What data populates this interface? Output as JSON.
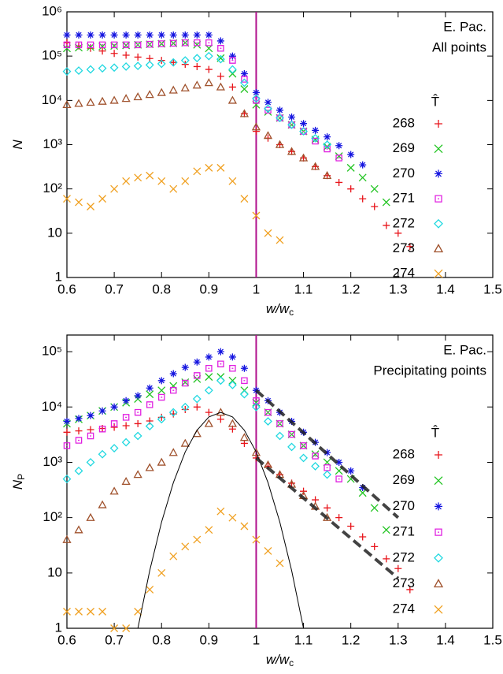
{
  "chart_data": [
    {
      "type": "scatter",
      "annotation": [
        "E. Pac.",
        "All points"
      ],
      "xlabel": {
        "main": "w/w",
        "sub": "c"
      },
      "ylabel": {
        "main": "N",
        "sub": ""
      },
      "legend_title": "T̂",
      "legend": "right",
      "log_y": true,
      "xlim": [
        0.6,
        1.5
      ],
      "ylim": [
        1,
        1000000
      ],
      "xticks": [
        0.6,
        0.7,
        0.8,
        0.9,
        1,
        1.1,
        1.2,
        1.3,
        1.4,
        1.5
      ],
      "yticks": [
        1,
        10,
        {
          "value": 100,
          "label": "10²"
        },
        {
          "value": 1000,
          "label": "10³"
        },
        {
          "value": 10000,
          "label": "10⁴"
        },
        {
          "value": 100000,
          "label": "10⁵"
        },
        {
          "value": 1000000,
          "label": "10⁶"
        }
      ],
      "vline": {
        "x": 1,
        "color": "#b0108c"
      },
      "x": [
        0.6,
        0.625,
        0.65,
        0.675,
        0.7,
        0.725,
        0.75,
        0.775,
        0.8,
        0.825,
        0.85,
        0.875,
        0.9,
        0.925,
        0.95,
        0.975,
        1.0,
        1.025,
        1.05,
        1.075,
        1.1,
        1.125,
        1.15,
        1.175,
        1.2,
        1.225,
        1.25,
        1.275,
        1.3,
        1.325
      ],
      "series": [
        {
          "name": "268",
          "color": "#e8151b",
          "marker": "plus",
          "values": [
            200000,
            170000,
            150000,
            130000,
            115000,
            105000,
            95000,
            88000,
            80000,
            72000,
            65000,
            58000,
            50000,
            35000,
            20000,
            5000,
            2000,
            1400,
            1000,
            700,
            500,
            320,
            200,
            140,
            100,
            60,
            40,
            15,
            10,
            5
          ]
        },
        {
          "name": "269",
          "color": "#22c422",
          "marker": "cross",
          "values": [
            150000,
            155000,
            160000,
            165000,
            170000,
            175000,
            180000,
            185000,
            190000,
            195000,
            200000,
            180000,
            150000,
            90000,
            40000,
            18000,
            8000,
            5500,
            4000,
            2800,
            2000,
            1300,
            900,
            550,
            300,
            180,
            100,
            50,
            null,
            null
          ]
        },
        {
          "name": "270",
          "color": "#1515e0",
          "marker": "star",
          "values": [
            300000,
            300000,
            300000,
            300000,
            300000,
            300000,
            300000,
            300000,
            300000,
            300000,
            300000,
            300000,
            300000,
            220000,
            100000,
            40000,
            15000,
            9000,
            6000,
            4200,
            3000,
            2100,
            1500,
            950,
            600,
            350,
            null,
            null,
            null,
            null
          ]
        },
        {
          "name": "271",
          "color": "#e020e0",
          "marker": "square",
          "values": [
            180000,
            180000,
            180000,
            180000,
            180000,
            180000,
            180000,
            185000,
            190000,
            195000,
            200000,
            200000,
            200000,
            150000,
            80000,
            30000,
            10000,
            6000,
            4000,
            2800,
            2000,
            1200,
            800,
            500,
            null,
            null,
            null,
            null,
            null,
            null
          ]
        },
        {
          "name": "272",
          "color": "#20d8e0",
          "marker": "diamond",
          "values": [
            45000,
            47000,
            50000,
            53000,
            55000,
            58000,
            60000,
            63000,
            67000,
            72000,
            80000,
            90000,
            100000,
            85000,
            50000,
            25000,
            11000,
            6500,
            4000,
            2800,
            2000,
            1400,
            1000,
            null,
            null,
            null,
            null,
            null,
            null,
            null
          ]
        },
        {
          "name": "273",
          "color": "#a0522d",
          "marker": "triangle",
          "values": [
            8000,
            8500,
            9000,
            9500,
            10000,
            11000,
            12000,
            13500,
            15000,
            17000,
            19000,
            22000,
            25000,
            20000,
            10000,
            5000,
            2500,
            1600,
            1000,
            700,
            500,
            320,
            200,
            null,
            null,
            null,
            null,
            null,
            null,
            null
          ]
        },
        {
          "name": "274",
          "color": "#f0a020",
          "marker": "cross",
          "values": [
            60,
            50,
            40,
            60,
            100,
            150,
            180,
            200,
            150,
            100,
            150,
            250,
            300,
            300,
            150,
            60,
            25,
            10,
            7,
            null,
            null,
            null,
            null,
            null,
            null,
            null,
            null,
            null,
            null,
            null
          ]
        }
      ]
    },
    {
      "type": "scatter",
      "annotation": [
        "E. Pac.",
        "Precipitating points"
      ],
      "xlabel": {
        "main": "w/w",
        "sub": "c"
      },
      "ylabel": {
        "main": "N",
        "sub": "P"
      },
      "legend_title": "T̂",
      "legend": "right",
      "log_y": true,
      "xlim": [
        0.6,
        1.5
      ],
      "ylim": [
        1,
        200000
      ],
      "xticks": [
        0.6,
        0.7,
        0.8,
        0.9,
        1,
        1.1,
        1.2,
        1.3,
        1.4,
        1.5
      ],
      "yticks": [
        1,
        10,
        {
          "value": 100,
          "label": "10²"
        },
        {
          "value": 1000,
          "label": "10³"
        },
        {
          "value": 10000,
          "label": "10⁴"
        },
        {
          "value": 100000,
          "label": "10⁵"
        }
      ],
      "vline": {
        "x": 1,
        "color": "#b0108c"
      },
      "x": [
        0.6,
        0.625,
        0.65,
        0.675,
        0.7,
        0.725,
        0.75,
        0.775,
        0.8,
        0.825,
        0.85,
        0.875,
        0.9,
        0.925,
        0.95,
        0.975,
        1.0,
        1.025,
        1.05,
        1.075,
        1.1,
        1.125,
        1.15,
        1.175,
        1.2,
        1.225,
        1.25,
        1.275,
        1.3,
        1.325
      ],
      "series": [
        {
          "name": "268",
          "color": "#e8151b",
          "marker": "plus",
          "values": [
            3500,
            3700,
            3900,
            4100,
            4300,
            4600,
            5000,
            5600,
            6500,
            7500,
            9000,
            10000,
            8000,
            6000,
            4000,
            2200,
            1200,
            850,
            600,
            420,
            300,
            210,
            150,
            100,
            70,
            45,
            30,
            18,
            12,
            5
          ]
        },
        {
          "name": "269",
          "color": "#22c422",
          "marker": "cross",
          "values": [
            5000,
            6000,
            7000,
            8500,
            10000,
            12000,
            14000,
            17000,
            20000,
            24000,
            28000,
            32000,
            35000,
            35000,
            30000,
            20000,
            12000,
            8000,
            5000,
            3200,
            2000,
            1400,
            1000,
            700,
            500,
            280,
            150,
            60,
            null,
            null
          ]
        },
        {
          "name": "270",
          "color": "#1515e0",
          "marker": "star",
          "values": [
            5500,
            6200,
            7000,
            8500,
            10000,
            13000,
            16000,
            22000,
            30000,
            40000,
            52000,
            65000,
            80000,
            100000,
            80000,
            50000,
            20000,
            13000,
            8000,
            5500,
            3500,
            2300,
            1500,
            1000,
            700,
            350,
            null,
            null,
            null,
            null
          ]
        },
        {
          "name": "271",
          "color": "#e020e0",
          "marker": "square",
          "values": [
            2000,
            2500,
            3000,
            4000,
            5000,
            6500,
            8000,
            11000,
            15000,
            20000,
            27000,
            37000,
            50000,
            60000,
            50000,
            30000,
            13000,
            8000,
            5000,
            3200,
            2000,
            1300,
            800,
            500,
            null,
            null,
            null,
            null,
            null,
            null
          ]
        },
        {
          "name": "272",
          "color": "#20d8e0",
          "marker": "diamond",
          "values": [
            500,
            700,
            1000,
            1400,
            1800,
            2300,
            3000,
            4500,
            6000,
            8000,
            10000,
            14000,
            20000,
            30000,
            25000,
            17000,
            10000,
            5500,
            3000,
            1900,
            1200,
            850,
            600,
            null,
            null,
            null,
            null,
            null,
            null,
            null
          ]
        },
        {
          "name": "273",
          "color": "#a0522d",
          "marker": "triangle",
          "values": [
            40,
            60,
            100,
            170,
            300,
            450,
            600,
            800,
            1000,
            1500,
            2200,
            3300,
            5000,
            8000,
            5000,
            2800,
            1500,
            900,
            600,
            400,
            250,
            160,
            100,
            null,
            null,
            null,
            null,
            null,
            null,
            null
          ]
        },
        {
          "name": "274",
          "color": "#f0a020",
          "marker": "cross",
          "values": [
            2,
            2,
            2,
            2,
            1,
            1,
            2,
            5,
            10,
            20,
            30,
            40,
            60,
            130,
            100,
            70,
            40,
            25,
            15,
            null,
            null,
            null,
            null,
            null,
            null,
            null,
            null,
            null,
            null,
            null
          ]
        }
      ],
      "lines": [
        {
          "color": "#000000",
          "width": 1,
          "dash": "",
          "x": [
            0.75,
            0.775,
            0.8,
            0.825,
            0.85,
            0.875,
            0.9,
            0.925,
            0.95,
            0.975,
            1.0,
            1.025,
            1.05,
            1.075,
            1.1
          ],
          "values": [
            1,
            11,
            83,
            430,
            1540,
            3800,
            6600,
            8000,
            6600,
            3800,
            1540,
            430,
            83,
            11,
            1
          ]
        },
        {
          "color": "#222222",
          "width": 4,
          "dash": "12 6",
          "x": [
            1.0,
            1.3
          ],
          "values": [
            20000,
            100
          ]
        },
        {
          "color": "#222222",
          "width": 4,
          "dash": "12 6",
          "x": [
            1.0,
            1.3
          ],
          "values": [
            1200,
            8
          ]
        }
      ]
    }
  ]
}
